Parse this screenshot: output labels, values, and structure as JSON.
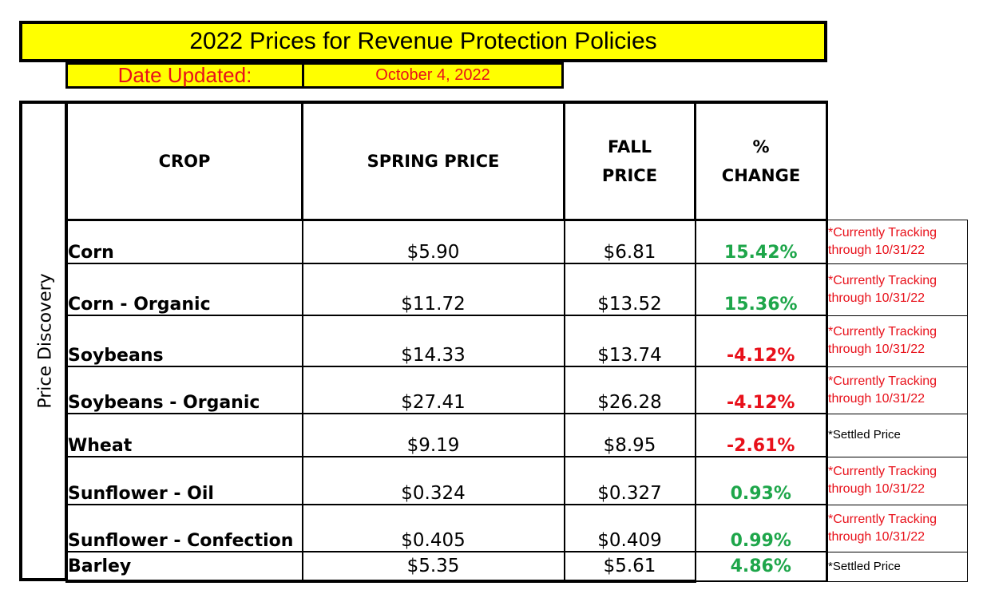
{
  "title": "2022 Prices for Revenue Protection Policies",
  "date_label": "Date Updated:",
  "date_value": "October 4, 2022",
  "side_label": "Price Discovery",
  "headers": {
    "crop": "CROP",
    "spring": "SPRING PRICE",
    "fall_line1": "FALL",
    "fall_line2": "PRICE",
    "pct_line1": "%",
    "pct_line2": "CHANGE"
  },
  "rows": [
    {
      "crop": "Corn",
      "spring": "$5.90",
      "fall": "$6.81",
      "pct": "15.42%",
      "note_line1": "*Currently Tracking",
      "note_line2": "through 10/31/22"
    },
    {
      "crop": "Corn - Organic",
      "spring": "$11.72",
      "fall": "$13.52",
      "pct": "15.36%",
      "note_line1": "*Currently Tracking",
      "note_line2": "through 10/31/22"
    },
    {
      "crop": "Soybeans",
      "spring": "$14.33",
      "fall": "$13.74",
      "pct": "-4.12%",
      "note_line1": "*Currently Tracking",
      "note_line2": "through 10/31/22"
    },
    {
      "crop": "Soybeans - Organic",
      "spring": "$27.41",
      "fall": "$26.28",
      "pct": "-4.12%",
      "note_line1": "*Currently Tracking",
      "note_line2": "through 10/31/22"
    },
    {
      "crop": "Wheat",
      "spring": "$9.19",
      "fall": "$8.95",
      "pct": "-2.61%",
      "note_line1": "*Settled Price",
      "note_line2": ""
    },
    {
      "crop": "Sunflower - Oil",
      "spring": "$0.324",
      "fall": "$0.327",
      "pct": "0.93%",
      "note_line1": "*Currently Tracking",
      "note_line2": "through 10/31/22"
    },
    {
      "crop": "Sunflower - Confection",
      "spring": "$0.405",
      "fall": "$0.409",
      "pct": "0.99%",
      "note_line1": "*Currently Tracking",
      "note_line2": "through 10/31/22"
    },
    {
      "crop": "Barley",
      "spring": "$5.35",
      "fall": "$5.61",
      "pct": "4.86%",
      "note_line1": "*Settled Price",
      "note_line2": ""
    }
  ],
  "colors": {
    "highlight": "#ffff00",
    "positive": "#1ea64a",
    "negative": "#e8101a",
    "note_red": "#e8101a"
  }
}
